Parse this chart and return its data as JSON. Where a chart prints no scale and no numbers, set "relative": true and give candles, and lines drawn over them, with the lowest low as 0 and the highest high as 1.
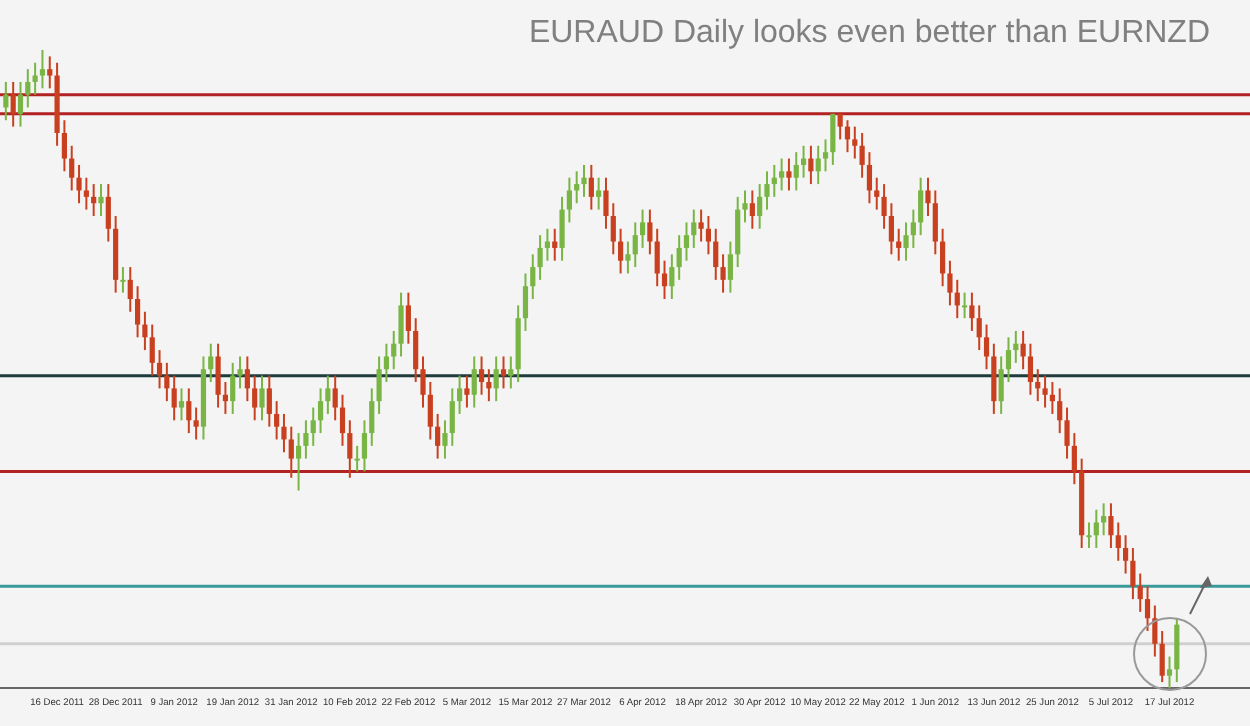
{
  "chart_data": {
    "type": "candlestick",
    "title": "EURAUD Daily looks even better than EURNZD",
    "relative": true,
    "categories": [
      null,
      null,
      null,
      null,
      null,
      null,
      null,
      "16 Dec 2011",
      null,
      null,
      null,
      null,
      null,
      null,
      null,
      "28 Dec 2011",
      null,
      null,
      null,
      null,
      null,
      null,
      null,
      "9 Jan 2012",
      null,
      null,
      null,
      null,
      null,
      null,
      null,
      "19 Jan 2012",
      null,
      null,
      null,
      null,
      null,
      null,
      null,
      "31 Jan 2012",
      null,
      null,
      null,
      null,
      null,
      null,
      null,
      "10 Feb 2012",
      null,
      null,
      null,
      null,
      null,
      null,
      null,
      "22 Feb 2012",
      null,
      null,
      null,
      null,
      null,
      null,
      null,
      "5 Mar 2012",
      null,
      null,
      null,
      null,
      null,
      null,
      null,
      "15 Mar 2012",
      null,
      null,
      null,
      null,
      null,
      null,
      null,
      "27 Mar 2012",
      null,
      null,
      null,
      null,
      null,
      null,
      null,
      "6 Apr 2012",
      null,
      null,
      null,
      null,
      null,
      null,
      null,
      "18 Apr 2012",
      null,
      null,
      null,
      null,
      null,
      null,
      null,
      "30 Apr 2012",
      null,
      null,
      null,
      null,
      null,
      null,
      null,
      "10 May 2012",
      null,
      null,
      null,
      null,
      null,
      null,
      null,
      "22 May 2012",
      null,
      null,
      null,
      null,
      null,
      null,
      null,
      "1 Jun 2012",
      null,
      null,
      null,
      null,
      null,
      null,
      null,
      "13 Jun 2012",
      null,
      null,
      null,
      null,
      null,
      null,
      null,
      "25 Jun 2012",
      null,
      null,
      null,
      null,
      null,
      null,
      null,
      "5 Jul 2012",
      null,
      null,
      null,
      null,
      null,
      null,
      null,
      "17 Jul 2012",
      null
    ],
    "ohlc": [
      [
        0.91,
        0.95,
        0.89,
        0.93
      ],
      [
        0.93,
        0.95,
        0.88,
        0.9
      ],
      [
        0.9,
        0.95,
        0.88,
        0.93
      ],
      [
        0.93,
        0.97,
        0.91,
        0.95
      ],
      [
        0.95,
        0.98,
        0.93,
        0.96
      ],
      [
        0.96,
        1.0,
        0.94,
        0.97
      ],
      [
        0.97,
        0.99,
        0.94,
        0.96
      ],
      [
        0.96,
        0.98,
        0.85,
        0.87
      ],
      [
        0.87,
        0.89,
        0.81,
        0.83
      ],
      [
        0.83,
        0.85,
        0.78,
        0.8
      ],
      [
        0.8,
        0.82,
        0.76,
        0.78
      ],
      [
        0.78,
        0.8,
        0.75,
        0.77
      ],
      [
        0.77,
        0.79,
        0.74,
        0.76
      ],
      [
        0.76,
        0.79,
        0.74,
        0.77
      ],
      [
        0.77,
        0.79,
        0.7,
        0.72
      ],
      [
        0.72,
        0.74,
        0.62,
        0.64
      ],
      [
        0.64,
        0.66,
        0.62,
        0.64
      ],
      [
        0.64,
        0.66,
        0.59,
        0.61
      ],
      [
        0.61,
        0.63,
        0.55,
        0.57
      ],
      [
        0.57,
        0.59,
        0.53,
        0.55
      ],
      [
        0.55,
        0.57,
        0.49,
        0.51
      ],
      [
        0.51,
        0.53,
        0.47,
        0.49
      ],
      [
        0.49,
        0.51,
        0.45,
        0.47
      ],
      [
        0.47,
        0.49,
        0.42,
        0.44
      ],
      [
        0.44,
        0.47,
        0.42,
        0.45
      ],
      [
        0.45,
        0.47,
        0.4,
        0.42
      ],
      [
        0.42,
        0.44,
        0.39,
        0.41
      ],
      [
        0.41,
        0.52,
        0.39,
        0.5
      ],
      [
        0.5,
        0.54,
        0.48,
        0.52
      ],
      [
        0.52,
        0.54,
        0.44,
        0.46
      ],
      [
        0.46,
        0.48,
        0.43,
        0.45
      ],
      [
        0.45,
        0.51,
        0.43,
        0.49
      ],
      [
        0.49,
        0.52,
        0.47,
        0.5
      ],
      [
        0.5,
        0.52,
        0.45,
        0.47
      ],
      [
        0.47,
        0.49,
        0.42,
        0.44
      ],
      [
        0.44,
        0.49,
        0.42,
        0.47
      ],
      [
        0.47,
        0.49,
        0.41,
        0.43
      ],
      [
        0.43,
        0.45,
        0.39,
        0.41
      ],
      [
        0.41,
        0.43,
        0.37,
        0.39
      ],
      [
        0.39,
        0.41,
        0.33,
        0.36
      ],
      [
        0.36,
        0.4,
        0.31,
        0.38
      ],
      [
        0.38,
        0.42,
        0.36,
        0.4
      ],
      [
        0.4,
        0.44,
        0.38,
        0.42
      ],
      [
        0.42,
        0.47,
        0.4,
        0.45
      ],
      [
        0.45,
        0.49,
        0.43,
        0.47
      ],
      [
        0.47,
        0.49,
        0.42,
        0.44
      ],
      [
        0.44,
        0.46,
        0.38,
        0.4
      ],
      [
        0.4,
        0.42,
        0.33,
        0.36
      ],
      [
        0.36,
        0.38,
        0.34,
        0.36
      ],
      [
        0.36,
        0.42,
        0.34,
        0.4
      ],
      [
        0.4,
        0.47,
        0.38,
        0.45
      ],
      [
        0.45,
        0.52,
        0.43,
        0.5
      ],
      [
        0.5,
        0.54,
        0.48,
        0.52
      ],
      [
        0.52,
        0.56,
        0.5,
        0.54
      ],
      [
        0.54,
        0.62,
        0.52,
        0.6
      ],
      [
        0.6,
        0.62,
        0.54,
        0.56
      ],
      [
        0.56,
        0.58,
        0.48,
        0.5
      ],
      [
        0.5,
        0.52,
        0.44,
        0.46
      ],
      [
        0.46,
        0.48,
        0.39,
        0.41
      ],
      [
        0.41,
        0.43,
        0.36,
        0.38
      ],
      [
        0.38,
        0.42,
        0.36,
        0.4
      ],
      [
        0.4,
        0.47,
        0.38,
        0.45
      ],
      [
        0.45,
        0.49,
        0.43,
        0.47
      ],
      [
        0.47,
        0.49,
        0.44,
        0.46
      ],
      [
        0.46,
        0.52,
        0.44,
        0.5
      ],
      [
        0.5,
        0.52,
        0.46,
        0.48
      ],
      [
        0.48,
        0.5,
        0.45,
        0.47
      ],
      [
        0.47,
        0.52,
        0.45,
        0.5
      ],
      [
        0.5,
        0.52,
        0.47,
        0.49
      ],
      [
        0.49,
        0.52,
        0.47,
        0.5
      ],
      [
        0.5,
        0.6,
        0.48,
        0.58
      ],
      [
        0.58,
        0.65,
        0.56,
        0.63
      ],
      [
        0.63,
        0.68,
        0.61,
        0.66
      ],
      [
        0.66,
        0.71,
        0.64,
        0.69
      ],
      [
        0.69,
        0.72,
        0.67,
        0.7
      ],
      [
        0.7,
        0.72,
        0.67,
        0.69
      ],
      [
        0.69,
        0.77,
        0.67,
        0.75
      ],
      [
        0.75,
        0.8,
        0.73,
        0.78
      ],
      [
        0.78,
        0.81,
        0.76,
        0.79
      ],
      [
        0.79,
        0.82,
        0.77,
        0.8
      ],
      [
        0.8,
        0.82,
        0.75,
        0.77
      ],
      [
        0.77,
        0.8,
        0.75,
        0.78
      ],
      [
        0.78,
        0.8,
        0.72,
        0.74
      ],
      [
        0.74,
        0.76,
        0.68,
        0.7
      ],
      [
        0.7,
        0.72,
        0.65,
        0.67
      ],
      [
        0.67,
        0.7,
        0.65,
        0.68
      ],
      [
        0.68,
        0.73,
        0.66,
        0.71
      ],
      [
        0.71,
        0.75,
        0.69,
        0.73
      ],
      [
        0.73,
        0.75,
        0.68,
        0.7
      ],
      [
        0.7,
        0.72,
        0.63,
        0.65
      ],
      [
        0.65,
        0.67,
        0.61,
        0.63
      ],
      [
        0.63,
        0.68,
        0.61,
        0.66
      ],
      [
        0.66,
        0.71,
        0.64,
        0.69
      ],
      [
        0.69,
        0.73,
        0.67,
        0.71
      ],
      [
        0.71,
        0.75,
        0.69,
        0.73
      ],
      [
        0.73,
        0.75,
        0.7,
        0.72
      ],
      [
        0.72,
        0.74,
        0.68,
        0.7
      ],
      [
        0.7,
        0.72,
        0.64,
        0.66
      ],
      [
        0.66,
        0.68,
        0.62,
        0.64
      ],
      [
        0.64,
        0.7,
        0.62,
        0.68
      ],
      [
        0.68,
        0.77,
        0.66,
        0.75
      ],
      [
        0.75,
        0.78,
        0.73,
        0.76
      ],
      [
        0.76,
        0.78,
        0.72,
        0.74
      ],
      [
        0.74,
        0.79,
        0.72,
        0.77
      ],
      [
        0.77,
        0.81,
        0.75,
        0.79
      ],
      [
        0.79,
        0.82,
        0.77,
        0.8
      ],
      [
        0.8,
        0.83,
        0.78,
        0.81
      ],
      [
        0.81,
        0.83,
        0.78,
        0.8
      ],
      [
        0.8,
        0.84,
        0.78,
        0.82
      ],
      [
        0.82,
        0.85,
        0.8,
        0.83
      ],
      [
        0.83,
        0.85,
        0.79,
        0.81
      ],
      [
        0.81,
        0.85,
        0.79,
        0.83
      ],
      [
        0.83,
        0.86,
        0.81,
        0.84
      ],
      [
        0.84,
        0.9,
        0.82,
        0.9
      ],
      [
        0.9,
        0.9,
        0.86,
        0.88
      ],
      [
        0.88,
        0.89,
        0.84,
        0.86
      ],
      [
        0.86,
        0.88,
        0.83,
        0.85
      ],
      [
        0.85,
        0.87,
        0.8,
        0.82
      ],
      [
        0.82,
        0.84,
        0.76,
        0.78
      ],
      [
        0.78,
        0.8,
        0.75,
        0.77
      ],
      [
        0.77,
        0.79,
        0.72,
        0.74
      ],
      [
        0.74,
        0.76,
        0.68,
        0.7
      ],
      [
        0.7,
        0.72,
        0.67,
        0.69
      ],
      [
        0.69,
        0.73,
        0.67,
        0.71
      ],
      [
        0.71,
        0.75,
        0.69,
        0.73
      ],
      [
        0.73,
        0.8,
        0.71,
        0.78
      ],
      [
        0.78,
        0.8,
        0.74,
        0.76
      ],
      [
        0.76,
        0.78,
        0.68,
        0.7
      ],
      [
        0.7,
        0.72,
        0.63,
        0.65
      ],
      [
        0.65,
        0.67,
        0.6,
        0.62
      ],
      [
        0.62,
        0.64,
        0.58,
        0.6
      ],
      [
        0.6,
        0.62,
        0.58,
        0.6
      ],
      [
        0.6,
        0.62,
        0.56,
        0.58
      ],
      [
        0.58,
        0.6,
        0.53,
        0.55
      ],
      [
        0.55,
        0.57,
        0.5,
        0.52
      ],
      [
        0.52,
        0.54,
        0.43,
        0.45
      ],
      [
        0.45,
        0.52,
        0.43,
        0.5
      ],
      [
        0.5,
        0.55,
        0.48,
        0.53
      ],
      [
        0.53,
        0.56,
        0.51,
        0.54
      ],
      [
        0.54,
        0.56,
        0.5,
        0.52
      ],
      [
        0.52,
        0.54,
        0.46,
        0.48
      ],
      [
        0.48,
        0.5,
        0.45,
        0.47
      ],
      [
        0.47,
        0.49,
        0.44,
        0.46
      ],
      [
        0.46,
        0.48,
        0.43,
        0.45
      ],
      [
        0.45,
        0.47,
        0.4,
        0.42
      ],
      [
        0.42,
        0.44,
        0.36,
        0.38
      ],
      [
        0.38,
        0.4,
        0.32,
        0.34
      ],
      [
        0.34,
        0.36,
        0.22,
        0.24
      ],
      [
        0.24,
        0.26,
        0.22,
        0.24
      ],
      [
        0.24,
        0.28,
        0.22,
        0.26
      ],
      [
        0.26,
        0.29,
        0.24,
        0.27
      ],
      [
        0.27,
        0.29,
        0.22,
        0.24
      ],
      [
        0.24,
        0.26,
        0.2,
        0.22
      ],
      [
        0.22,
        0.24,
        0.18,
        0.2
      ],
      [
        0.2,
        0.22,
        0.14,
        0.16
      ],
      [
        0.16,
        0.18,
        0.12,
        0.14
      ],
      [
        0.14,
        0.16,
        0.09,
        0.11
      ],
      [
        0.11,
        0.13,
        0.05,
        0.07
      ],
      [
        0.07,
        0.09,
        0.01,
        0.02
      ],
      [
        0.02,
        0.05,
        0.0,
        0.03
      ],
      [
        0.03,
        0.11,
        0.01,
        0.1
      ]
    ],
    "ref_lines": [
      {
        "axis": "y",
        "value": 0.93,
        "color": "#b22222"
      },
      {
        "axis": "y",
        "value": 0.9,
        "color": "#b22222"
      },
      {
        "axis": "y",
        "value": 0.34,
        "color": "#b22222"
      },
      {
        "axis": "y",
        "value": 0.49,
        "color": "#1f3b3b"
      },
      {
        "axis": "y",
        "value": 0.16,
        "color": "#3a9a9a"
      },
      {
        "axis": "y",
        "value": 0.07,
        "color": "#d0d0d0"
      }
    ],
    "grid": false,
    "legend": false
  }
}
